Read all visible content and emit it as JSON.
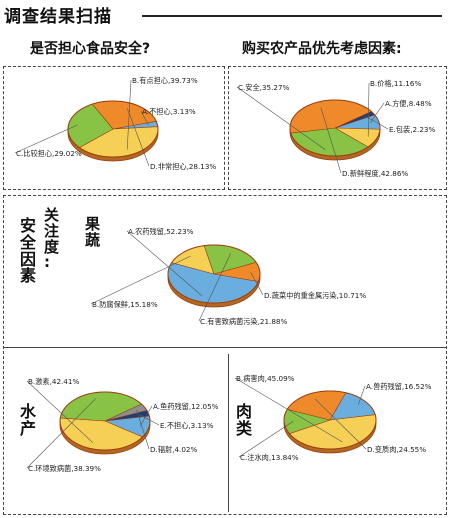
{
  "header": {
    "title": "调查结果扫描"
  },
  "questions": {
    "left": "是否担心食品安全?",
    "right": "购买农产品优先考虑因素:"
  },
  "side_labels": {
    "focus": [
      "关",
      "注",
      "度",
      ":"
    ],
    "safety": [
      "安",
      "全",
      "因",
      "素"
    ],
    "fruit_veg": [
      "果",
      "蔬"
    ],
    "aquatic": [
      "水",
      "产"
    ],
    "meat": [
      "肉",
      "类"
    ]
  },
  "colors": {
    "blue": "#6aaee0",
    "orange": "#ef8a2a",
    "green": "#88c346",
    "yellow": "#f6cf55",
    "navy": "#1d3f74",
    "gray": "#8f8f8f",
    "outline": "#9c3f12"
  },
  "chart_data": [
    {
      "id": "worry",
      "type": "pie",
      "slices": [
        {
          "label": "A.不担心,3.13%",
          "value": 3.13,
          "color": "blue"
        },
        {
          "label": "B.有点担心,39.73%",
          "value": 39.73,
          "color": "yellow"
        },
        {
          "label": "C.比较担心,29.02%",
          "value": 29.02,
          "color": "green"
        },
        {
          "label": "D.非常担心,28.13%",
          "value": 28.13,
          "color": "orange"
        }
      ]
    },
    {
      "id": "purchase",
      "type": "pie",
      "slices": [
        {
          "label": "A.方便,8.48%",
          "value": 8.48,
          "color": "blue"
        },
        {
          "label": "B.价格,11.16%",
          "value": 11.16,
          "color": "yellow"
        },
        {
          "label": "C.安全,35.27%",
          "value": 35.27,
          "color": "green"
        },
        {
          "label": "D.新鲜程度,42.86%",
          "value": 42.86,
          "color": "orange"
        },
        {
          "label": "E.包装,2.23%",
          "value": 2.23,
          "color": "navy"
        }
      ]
    },
    {
      "id": "fruit_veg",
      "type": "pie",
      "slices": [
        {
          "label": "A.农药残留,52.23%",
          "value": 52.23,
          "color": "blue"
        },
        {
          "label": "B.防腐保鲜,15.18%",
          "value": 15.18,
          "color": "yellow"
        },
        {
          "label": "C.有害致病菌污染,21.88%",
          "value": 21.88,
          "color": "green"
        },
        {
          "label": "D.蔬菜中的重金属污染,10.71%",
          "value": 10.71,
          "color": "orange"
        }
      ]
    },
    {
      "id": "aquatic",
      "type": "pie",
      "slices": [
        {
          "label": "A.鱼药残留,12.05%",
          "value": 12.05,
          "color": "blue"
        },
        {
          "label": "B.激素,42.41%",
          "value": 42.41,
          "color": "yellow"
        },
        {
          "label": "C.环境致病菌,38.39%",
          "value": 38.39,
          "color": "green"
        },
        {
          "label": "D.辐射,4.02%",
          "value": 4.02,
          "color": "gray"
        },
        {
          "label": "E.不担心,3.13%",
          "value": 3.13,
          "color": "navy"
        }
      ]
    },
    {
      "id": "meat",
      "type": "pie",
      "slices": [
        {
          "label": "A.兽药残留,16.52%",
          "value": 16.52,
          "color": "blue"
        },
        {
          "label": "B.病害肉,45.09%",
          "value": 45.09,
          "color": "yellow"
        },
        {
          "label": "C.注水肉,13.84%",
          "value": 13.84,
          "color": "green"
        },
        {
          "label": "D.变质肉,24.55%",
          "value": 24.55,
          "color": "orange"
        }
      ]
    }
  ]
}
